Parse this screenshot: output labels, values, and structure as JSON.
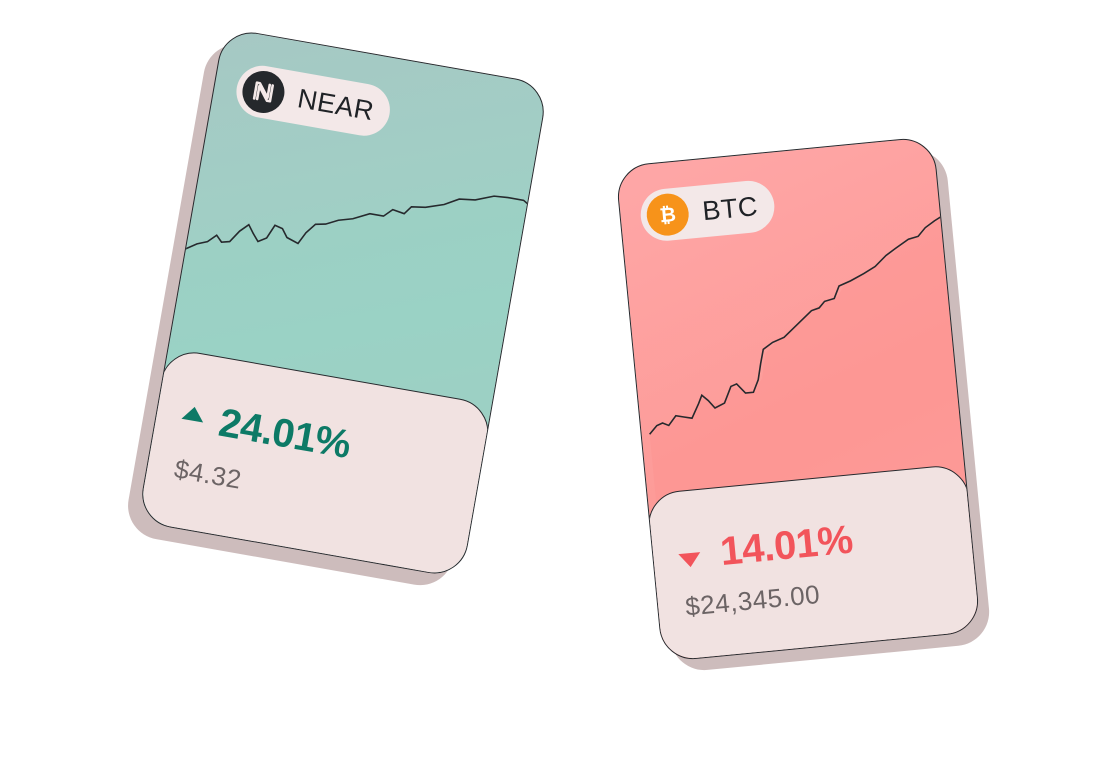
{
  "cards": [
    {
      "ticker": "NEAR",
      "change": "24.01%",
      "direction": "up",
      "price": "$4.32",
      "coin_icon": "near-logo-icon",
      "accent": "#0d7a66",
      "background": "#a6c8c4"
    },
    {
      "ticker": "BTC",
      "change": "14.01%",
      "direction": "down",
      "price": "$24,345.00",
      "coin_icon": "bitcoin-logo-icon",
      "accent": "#f2545b",
      "background": "#fea7a7"
    }
  ]
}
